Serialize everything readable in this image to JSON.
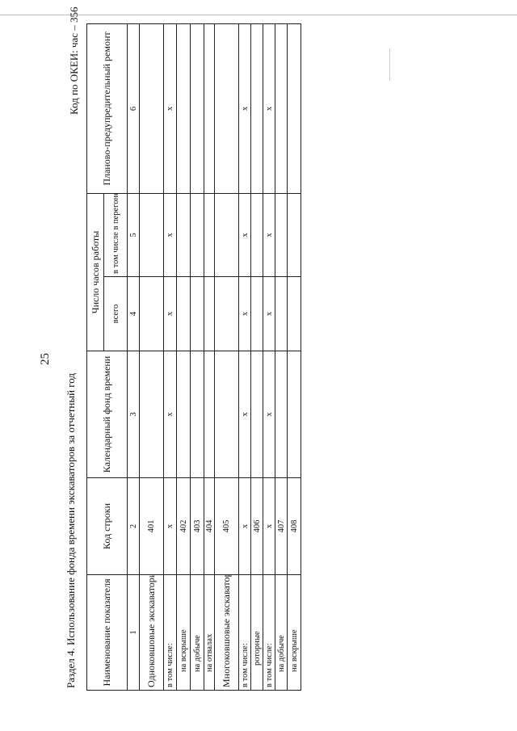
{
  "page_number": "25",
  "title": "Раздел 4. Использование фонда времени экскаваторов за отчетный год",
  "okei": "Код по ОКЕИ: час – 356",
  "table": {
    "headers": {
      "name": "Наименование показателя",
      "code": "Код строки",
      "calendar": "Календарный фонд времени",
      "hours_group": "Число часов работы",
      "hours_total": "всего",
      "hours_transfer": "в том числе в перегоне",
      "repair": "Планово-предупредительный ремонт"
    },
    "col_numbers": [
      "1",
      "2",
      "3",
      "4",
      "5",
      "6"
    ],
    "rows": [
      {
        "name": "Одноковшовые экскаваторы - всего",
        "indent": 0,
        "code": "401",
        "c3": "",
        "c4": "",
        "c5": "",
        "c6": ""
      },
      {
        "name": "в том числе:",
        "indent": 0,
        "code": "x",
        "c3": "x",
        "c4": "x",
        "c5": "x",
        "c6": "x"
      },
      {
        "name": "на вскрыше",
        "indent": 1,
        "code": "402",
        "c3": "",
        "c4": "",
        "c5": "",
        "c6": ""
      },
      {
        "name": "на добыче",
        "indent": 1,
        "code": "403",
        "c3": "",
        "c4": "",
        "c5": "",
        "c6": ""
      },
      {
        "name": "на отвалах",
        "indent": 1,
        "code": "404",
        "c3": "",
        "c4": "",
        "c5": "",
        "c6": ""
      },
      {
        "name": "Многоковшовые экскаваторы - всего",
        "indent": 0,
        "code": "405",
        "c3": "",
        "c4": "",
        "c5": "",
        "c6": ""
      },
      {
        "name": "в том числе:",
        "indent": 0,
        "code": "x",
        "c3": "x",
        "c4": "x",
        "c5": "x",
        "c6": "x"
      },
      {
        "name": "роторные",
        "indent": 2,
        "code": "406",
        "c3": "",
        "c4": "",
        "c5": "",
        "c6": ""
      },
      {
        "name": "в том числе:",
        "indent": 0,
        "code": "x",
        "c3": "x",
        "c4": "x",
        "c5": "x",
        "c6": "x"
      },
      {
        "name": "на добыче",
        "indent": 1,
        "code": "407",
        "c3": "",
        "c4": "",
        "c5": "",
        "c6": ""
      },
      {
        "name": "на вскрыше",
        "indent": 1,
        "code": "408",
        "c3": "",
        "c4": "",
        "c5": "",
        "c6": ""
      }
    ]
  }
}
